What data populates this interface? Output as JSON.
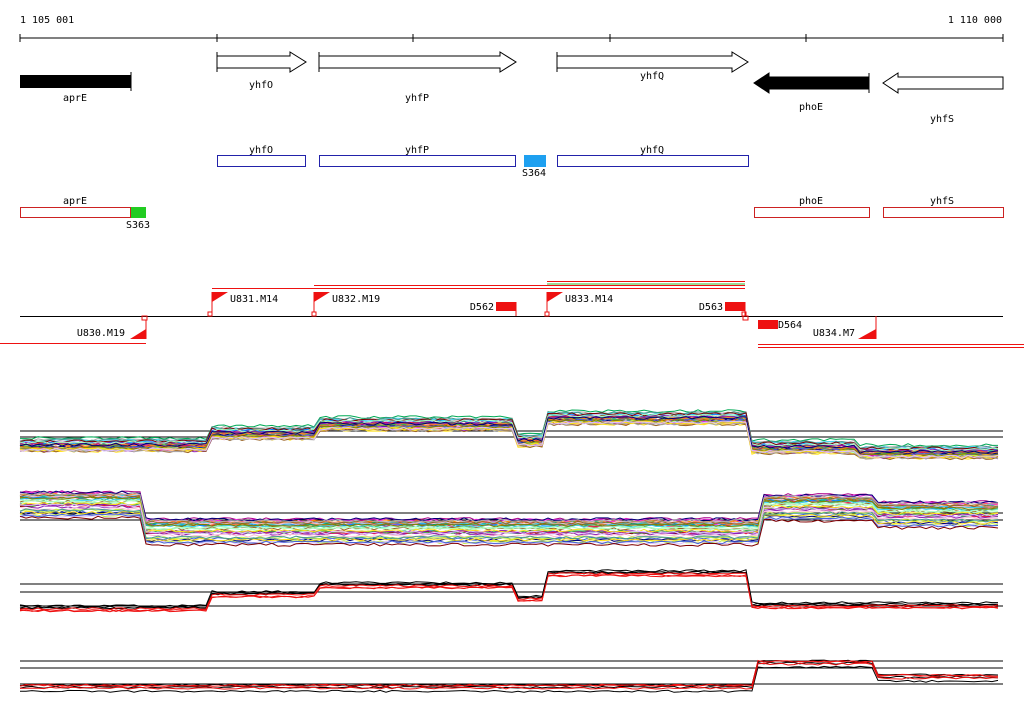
{
  "ruler": {
    "start_label": "1 105 001",
    "end_label": "1 110 000"
  },
  "strand_genes": [
    {
      "name": "aprE",
      "strand": "-",
      "filled": true
    },
    {
      "name": "yhfO",
      "strand": "+",
      "filled": false
    },
    {
      "name": "yhfP",
      "strand": "+",
      "filled": false
    },
    {
      "name": "yhfQ",
      "strand": "+",
      "filled": false
    },
    {
      "name": "phoE",
      "strand": "-",
      "filled": true
    },
    {
      "name": "yhfS",
      "strand": "-",
      "filled": false
    }
  ],
  "forward_boxes": [
    {
      "name": "yhfO",
      "color": "#2222aa"
    },
    {
      "name": "yhfP",
      "color": "#2222aa"
    },
    {
      "name": "S364",
      "color": "#1ea0f0",
      "filled": true
    },
    {
      "name": "yhfQ",
      "color": "#2222aa"
    }
  ],
  "reverse_boxes": [
    {
      "name": "aprE",
      "color": "#cc2222"
    },
    {
      "name": "S363",
      "color": "#22cc22",
      "filled": true
    },
    {
      "name": "phoE",
      "color": "#cc2222"
    },
    {
      "name": "yhfS",
      "color": "#cc2222"
    }
  ],
  "features_upper": [
    {
      "label": "U831.M14",
      "kind": "flag"
    },
    {
      "label": "U832.M19",
      "kind": "flag"
    },
    {
      "label": "D562",
      "kind": "block"
    },
    {
      "label": "U833.M14",
      "kind": "flag"
    },
    {
      "label": "D563",
      "kind": "block"
    }
  ],
  "features_lower": [
    {
      "label": "U830.M19",
      "kind": "flag"
    },
    {
      "label": "D564",
      "kind": "block"
    },
    {
      "label": "U834.M7",
      "kind": "flag"
    }
  ],
  "colors": {
    "feature_red": "#ee1111",
    "forward_outline": "#2222aa",
    "reverse_outline": "#cc2222",
    "line_green": "#33bb33"
  },
  "expression_panels": [
    {
      "name": "forward-multi",
      "style": "multicolor"
    },
    {
      "name": "reverse-multi",
      "style": "multicolor"
    },
    {
      "name": "forward-summary",
      "style": "black-red"
    },
    {
      "name": "reverse-summary",
      "style": "black-red"
    }
  ]
}
